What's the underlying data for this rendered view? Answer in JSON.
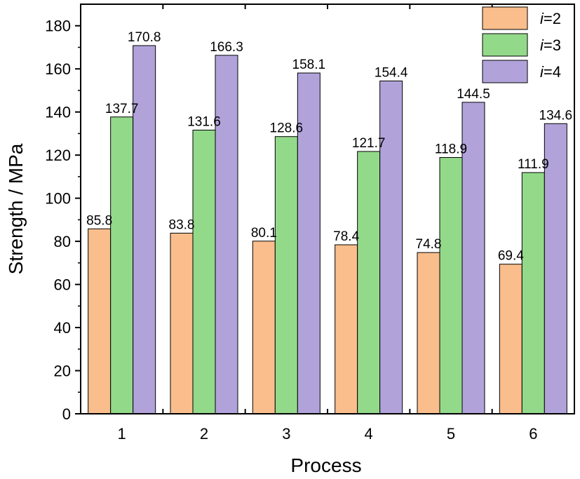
{
  "chart_data": {
    "type": "bar",
    "xlabel": "Process",
    "ylabel": "Strength / MPa",
    "categories": [
      "1",
      "2",
      "3",
      "4",
      "5",
      "6"
    ],
    "ylim": [
      0,
      190
    ],
    "yticks": [
      0,
      20,
      40,
      60,
      80,
      100,
      120,
      140,
      160,
      180
    ],
    "grid": false,
    "legend_position": "top-right",
    "series": [
      {
        "name": "i=2",
        "name_prefix": "i",
        "name_suffix": "=2",
        "color": "#f9be8c",
        "values": [
          85.8,
          83.8,
          80.1,
          78.4,
          74.8,
          69.4
        ],
        "labels": [
          "85.8",
          "83.8",
          "80.1",
          "78.4",
          "74.8",
          "69.4"
        ]
      },
      {
        "name": "i=3",
        "name_prefix": "i",
        "name_suffix": "=3",
        "color": "#93d98a",
        "values": [
          137.7,
          131.6,
          128.6,
          121.7,
          118.9,
          111.9
        ],
        "labels": [
          "137.7",
          "131.6",
          "128.6",
          "121.7",
          "118.9",
          "111.9"
        ]
      },
      {
        "name": "i=4",
        "name_prefix": "i",
        "name_suffix": "=4",
        "color": "#b1a3da",
        "values": [
          170.8,
          166.3,
          158.1,
          154.4,
          144.5,
          134.6
        ],
        "labels": [
          "170.8",
          "166.3",
          "158.1",
          "154.4",
          "144.5",
          "134.6"
        ]
      }
    ]
  }
}
